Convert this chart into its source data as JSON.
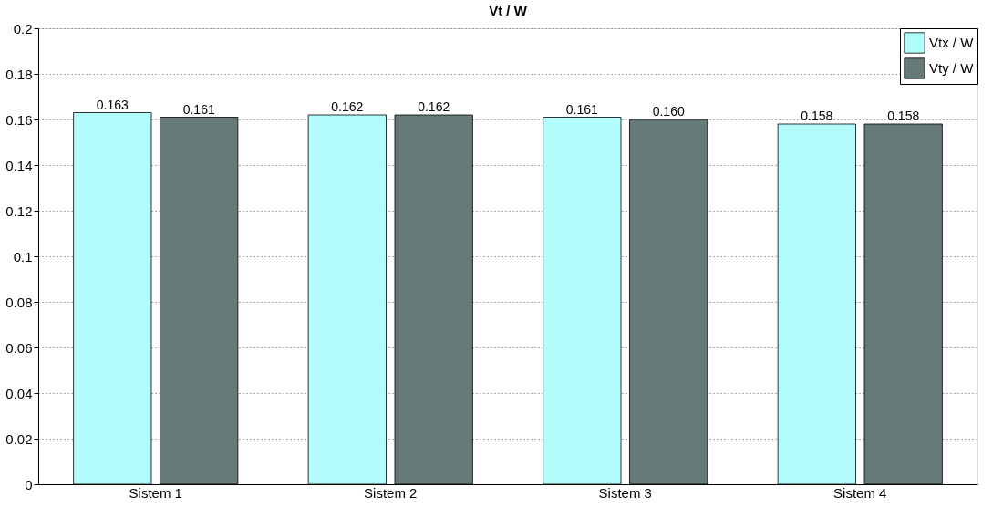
{
  "chart_data": {
    "type": "bar",
    "title": "Vt / W",
    "categories": [
      "Sistem 1",
      "Sistem 2",
      "Sistem 3",
      "Sistem 4"
    ],
    "series": [
      {
        "name": "Vtx / W",
        "color": "#b3fcfc",
        "values": [
          0.163,
          0.162,
          0.161,
          0.158
        ],
        "value_labels": [
          "0.163",
          "0.162",
          "0.161",
          "0.158"
        ]
      },
      {
        "name": "Vty / W",
        "color": "#667a7a",
        "values": [
          0.161,
          0.162,
          0.16,
          0.158
        ],
        "value_labels": [
          "0.161",
          "0.162",
          "0.160",
          "0.158"
        ]
      }
    ],
    "ylim": [
      0,
      0.2
    ],
    "yticks": [
      0,
      0.02,
      0.04,
      0.06,
      0.08,
      0.1,
      0.12,
      0.14,
      0.16,
      0.18,
      0.2
    ],
    "grid": "y",
    "legend": "top right"
  }
}
